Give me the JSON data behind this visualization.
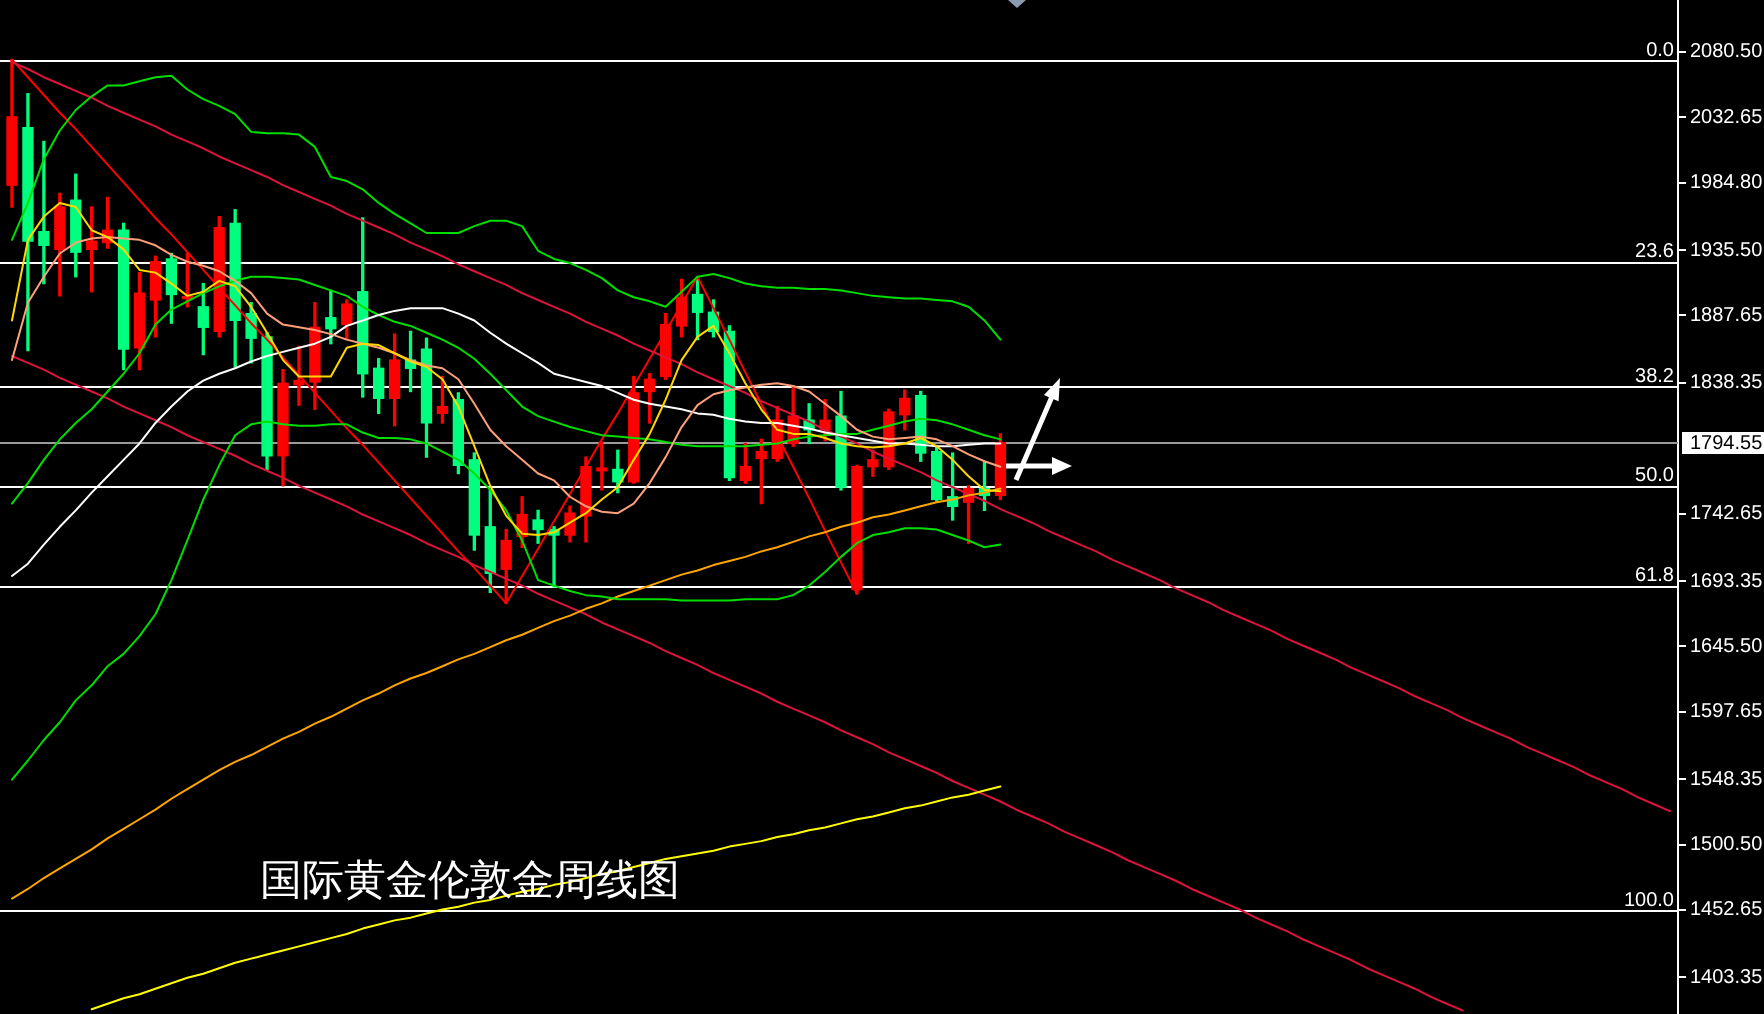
{
  "chart_data": {
    "type": "candlestick",
    "title": "国际黄金伦敦金周线图",
    "categories": [
      null,
      null,
      null,
      null,
      null,
      null,
      null,
      null,
      null,
      null,
      null,
      null,
      null,
      null,
      null,
      null,
      null,
      null,
      null,
      null,
      null,
      null,
      null,
      null,
      null,
      null,
      null,
      null,
      null,
      null,
      null,
      null,
      null,
      null,
      null,
      null,
      null,
      null,
      null,
      null,
      null,
      null,
      null,
      null,
      null,
      null,
      null,
      null,
      null,
      null,
      null,
      null,
      null,
      null,
      null,
      null,
      null,
      null,
      null,
      null,
      null,
      null,
      null,
      null,
      null,
      null,
      null,
      null,
      null,
      null,
      null,
      null,
      null,
      null,
      null,
      null,
      null,
      null,
      null,
      null,
      null,
      null,
      null,
      null,
      null,
      null,
      null,
      null,
      null,
      null,
      null,
      null,
      null,
      null,
      null,
      null,
      null,
      null,
      null,
      null,
      null,
      null,
      null,
      null,
      null
    ],
    "ohlc": [
      [
        1983,
        2075,
        1967,
        2033
      ],
      [
        2025,
        2050,
        1862,
        1942
      ],
      [
        1949,
        2015,
        1911,
        1939
      ],
      [
        1936,
        1977,
        1902,
        1967
      ],
      [
        1972,
        1991,
        1916,
        1934
      ],
      [
        1936,
        1967,
        1905,
        1942
      ],
      [
        1941,
        1974,
        1937,
        1950
      ],
      [
        1950,
        1955,
        1848,
        1863
      ],
      [
        1864,
        1919,
        1848,
        1904
      ],
      [
        1899,
        1931,
        1872,
        1927
      ],
      [
        1929,
        1933,
        1882,
        1903
      ],
      [
        1900,
        1933,
        1894,
        1901
      ],
      [
        1894,
        1911,
        1859,
        1879
      ],
      [
        1876,
        1960,
        1872,
        1952
      ],
      [
        1955,
        1965,
        1850,
        1884
      ],
      [
        1889,
        1897,
        1853,
        1871
      ],
      [
        1872,
        1875,
        1775,
        1785
      ],
      [
        1785,
        1848,
        1763,
        1838
      ],
      [
        1837,
        1865,
        1822,
        1840
      ],
      [
        1839,
        1897,
        1819,
        1879
      ],
      [
        1886,
        1906,
        1867,
        1878
      ],
      [
        1881,
        1899,
        1870,
        1896
      ],
      [
        1905,
        1959,
        1828,
        1845
      ],
      [
        1849,
        1856,
        1816,
        1827
      ],
      [
        1827,
        1874,
        1807,
        1855
      ],
      [
        1855,
        1876,
        1832,
        1849
      ],
      [
        1863,
        1871,
        1784,
        1809
      ],
      [
        1816,
        1843,
        1809,
        1821
      ],
      [
        1826,
        1831,
        1772,
        1778
      ],
      [
        1782,
        1787,
        1716,
        1727
      ],
      [
        1733,
        1760,
        1685,
        1699
      ],
      [
        1702,
        1731,
        1677,
        1723
      ],
      [
        1726,
        1755,
        1718,
        1742
      ],
      [
        1738,
        1745,
        1721,
        1731
      ],
      [
        1731,
        1733,
        1689,
        1727
      ],
      [
        1727,
        1748,
        1722,
        1743
      ],
      [
        1741,
        1784,
        1722,
        1777
      ],
      [
        1774,
        1795,
        1760,
        1776
      ],
      [
        1775,
        1789,
        1758,
        1766
      ],
      [
        1766,
        1843,
        1765,
        1831
      ],
      [
        1832,
        1845,
        1809,
        1841
      ],
      [
        1843,
        1889,
        1841,
        1881
      ],
      [
        1880,
        1914,
        1872,
        1901
      ],
      [
        1903,
        1916,
        1870,
        1890
      ],
      [
        1890,
        1899,
        1872,
        1876
      ],
      [
        1876,
        1880,
        1767,
        1769
      ],
      [
        1767,
        1794,
        1765,
        1777
      ],
      [
        1783,
        1797,
        1750,
        1788
      ],
      [
        1783,
        1821,
        1781,
        1811
      ],
      [
        1794,
        1835,
        1792,
        1814
      ],
      [
        1811,
        1823,
        1794,
        1804
      ],
      [
        1804,
        1826,
        1796,
        1811
      ],
      [
        1814,
        1832,
        1760,
        1762
      ],
      [
        1687,
        1778,
        1684,
        1777
      ],
      [
        1777,
        1789,
        1770,
        1782
      ],
      [
        1777,
        1819,
        1775,
        1817
      ],
      [
        1815,
        1833,
        1804,
        1827
      ],
      [
        1829,
        1832,
        1781,
        1787
      ],
      [
        1788,
        1792,
        1752,
        1753
      ],
      [
        1755,
        1787,
        1738,
        1748
      ],
      [
        1751,
        1763,
        1721,
        1761
      ],
      [
        1761,
        1780,
        1745,
        1756
      ],
      [
        1756,
        1801,
        1753,
        1794.55
      ],
      null,
      null,
      null,
      null,
      null,
      null,
      null,
      null,
      null,
      null,
      null,
      null,
      null,
      null,
      null,
      null,
      null,
      null,
      null,
      null,
      null,
      null,
      null,
      null,
      null,
      null,
      null,
      null,
      null,
      null,
      null,
      null,
      null,
      null,
      null,
      null,
      null,
      null,
      null,
      null,
      null,
      null
    ],
    "colors": [
      "#ff0000",
      "#00ff7f",
      "#00ff7f",
      "#ff0000",
      "#00ff7f",
      "#ff0000",
      "#ff0000",
      "#00ff7f",
      "#ff0000",
      "#ff0000",
      "#00ff7f",
      "#ff0000",
      "#00ff7f",
      "#ff0000",
      "#00ff7f",
      "#00ff7f",
      "#00ff7f",
      "#ff0000",
      "#ff0000",
      "#ff0000",
      "#00ff7f",
      "#ff0000",
      "#00ff7f",
      "#00ff7f",
      "#ff0000",
      "#00ff7f",
      "#00ff7f",
      "#ff0000",
      "#00ff7f",
      "#00ff7f",
      "#00ff7f",
      "#ff0000",
      "#ff0000",
      "#00ff7f",
      "#00ff7f",
      "#ff0000",
      "#ff0000",
      "#ff0000",
      "#00ff7f",
      "#ff0000",
      "#ff0000",
      "#ff0000",
      "#ff0000",
      "#00ff7f",
      "#00ff7f",
      "#00ff7f",
      "#ff0000",
      "#ff0000",
      "#ff0000",
      "#ff0000",
      "#00ff7f",
      "#ff0000",
      "#00ff7f",
      "#ff0000",
      "#ff0000",
      "#ff0000",
      "#ff0000",
      "#00ff7f",
      "#00ff7f",
      "#00ff7f",
      "#ff0000",
      "#00ff7f",
      "#ff0000",
      null,
      null,
      null,
      null,
      null,
      null,
      null,
      null,
      null,
      null,
      null,
      null,
      null,
      null,
      null,
      null,
      null,
      null,
      null,
      null,
      null,
      null,
      null,
      null,
      null,
      null,
      null,
      null,
      null,
      null,
      null,
      null,
      null,
      null,
      null,
      null,
      null,
      null,
      null,
      null,
      null,
      null
    ],
    "series": [
      {
        "type": "line",
        "color": "#ffd700",
        "values": [
          1884,
          1943,
          1960,
          1970,
          1967,
          1950,
          1945,
          1936,
          1921,
          1919,
          1911,
          1902,
          1905,
          1913,
          1909,
          1894,
          1875,
          1855,
          1843,
          1843,
          1843,
          1864,
          1867,
          1866,
          1860,
          1854,
          1850,
          1841,
          1821,
          1792,
          1763,
          1741,
          1728,
          1727,
          1729,
          1736,
          1743,
          1753,
          1762,
          1782,
          1801,
          1826,
          1855,
          1872,
          1880,
          1860,
          1838,
          1819,
          1804,
          1801,
          1801,
          1798,
          1794,
          1792,
          1791,
          1792,
          1794,
          1798,
          1792,
          1782,
          1770,
          1760,
          1759,
          null,
          null,
          null,
          null,
          null,
          null,
          null,
          null,
          null,
          null,
          null,
          null,
          null,
          null,
          null,
          null,
          null,
          null,
          null,
          null,
          null,
          null,
          null,
          null,
          null,
          null,
          null,
          null,
          null,
          null,
          null,
          null,
          null,
          null,
          null,
          null,
          null,
          null,
          null,
          null,
          null,
          null
        ]
      },
      {
        "type": "line",
        "color": "#ffa07a",
        "values": [
          1855,
          1897,
          1916,
          1933,
          1941,
          1944,
          1945,
          1944,
          1943,
          1939,
          1932,
          1927,
          1924,
          1920,
          1913,
          1904,
          1889,
          1881,
          1879,
          1877,
          1874,
          1870,
          1867,
          1864,
          1860,
          1855,
          1851,
          1849,
          1841,
          1823,
          1804,
          1792,
          1782,
          1772,
          1767,
          1755,
          1748,
          1744,
          1743,
          1750,
          1765,
          1784,
          1806,
          1822,
          1830,
          1833,
          1835,
          1837,
          1838,
          1836,
          1832,
          1823,
          1814,
          1804,
          1799,
          1797,
          1798,
          1799,
          1797,
          1792,
          1786,
          1781,
          1777,
          null,
          null,
          null,
          null,
          null,
          null,
          null,
          null,
          null,
          null,
          null,
          null,
          null,
          null,
          null,
          null,
          null,
          null,
          null,
          null,
          null,
          null,
          null,
          null,
          null,
          null,
          null,
          null,
          null,
          null,
          null,
          null,
          null,
          null,
          null,
          null,
          null,
          null,
          null,
          null,
          null,
          null
        ]
      },
      {
        "type": "line",
        "color": "#ffffff",
        "values": [
          1697,
          1706,
          1720,
          1733,
          1745,
          1758,
          1770,
          1782,
          1794,
          1809,
          1821,
          1832,
          1840,
          1845,
          1849,
          1854,
          1858,
          1861,
          1864,
          1867,
          1872,
          1880,
          1884,
          1888,
          1891,
          1893,
          1893,
          1893,
          1889,
          1884,
          1875,
          1867,
          1860,
          1853,
          1845,
          1842,
          1839,
          1836,
          1831,
          1826,
          1823,
          1821,
          1819,
          1816,
          1815,
          1812,
          1810,
          1809,
          1809,
          1807,
          1805,
          1802,
          1800,
          1798,
          1796,
          1794,
          1794,
          1793,
          1792,
          1792,
          1793,
          1794,
          1794,
          null,
          null,
          null,
          null,
          null,
          null,
          null,
          null,
          null,
          null,
          null,
          null,
          null,
          null,
          null,
          null,
          null,
          null,
          null,
          null,
          null,
          null,
          null,
          null,
          null,
          null,
          null,
          null,
          null,
          null,
          null,
          null,
          null,
          null,
          null,
          null,
          null,
          null,
          null,
          null,
          null,
          null
        ]
      },
      {
        "type": "line",
        "color": "#00dd00",
        "values": [
          1943,
          1970,
          2002,
          2023,
          2038,
          2048,
          2056,
          2056,
          2059,
          2062,
          2063,
          2053,
          2046,
          2041,
          2035,
          2022,
          2021,
          2021,
          2020,
          2011,
          1989,
          1986,
          1980,
          1970,
          1962,
          1955,
          1948,
          1948,
          1948,
          1953,
          1957,
          1957,
          1953,
          1935,
          1929,
          1926,
          1921,
          1915,
          1906,
          1901,
          1898,
          1894,
          1905,
          1916,
          1918,
          1915,
          1911,
          1909,
          1908,
          1908,
          1907,
          1907,
          1906,
          1904,
          1902,
          1901,
          1900,
          1900,
          1899,
          1898,
          1894,
          1884,
          1870,
          null,
          null,
          null,
          null,
          null,
          null,
          null,
          null,
          null,
          null,
          null,
          null,
          null,
          null,
          null,
          null,
          null,
          null,
          null,
          null,
          null,
          null,
          null,
          null,
          null,
          null,
          null,
          null,
          null,
          null,
          null,
          null,
          null,
          null,
          null,
          null,
          null,
          null,
          null,
          null,
          null,
          null
        ]
      },
      {
        "type": "line",
        "color": "#00dd00",
        "values": [
          1750,
          1765,
          1782,
          1797,
          1809,
          1819,
          1832,
          1845,
          1860,
          1881,
          1892,
          1898,
          1904,
          1909,
          1913,
          1916,
          1916,
          1915,
          1914,
          1910,
          1906,
          1902,
          1894,
          1888,
          1883,
          1880,
          1875,
          1870,
          1864,
          1856,
          1845,
          1833,
          1821,
          1814,
          1810,
          1806,
          1803,
          1800,
          1799,
          1798,
          1797,
          1795,
          1793,
          1792,
          1792,
          1792,
          1792,
          1793,
          1794,
          1797,
          1799,
          1800,
          1801,
          1801,
          1804,
          1807,
          1810,
          1812,
          1811,
          1808,
          1804,
          1800,
          1797,
          null,
          null,
          null,
          null,
          null,
          null,
          null,
          null,
          null,
          null,
          null,
          null,
          null,
          null,
          null,
          null,
          null,
          null,
          null,
          null,
          null,
          null,
          null,
          null,
          null,
          null,
          null,
          null,
          null,
          null,
          null,
          null,
          null,
          null,
          null,
          null,
          null,
          null,
          null,
          null,
          null,
          null
        ]
      },
      {
        "type": "line",
        "color": "#00dd00",
        "values": [
          1548,
          1562,
          1577,
          1590,
          1606,
          1617,
          1631,
          1640,
          1653,
          1669,
          1694,
          1723,
          1753,
          1778,
          1800,
          1808,
          1810,
          1808,
          1807,
          1807,
          1808,
          1808,
          1802,
          1798,
          1798,
          1797,
          1794,
          1788,
          1782,
          1772,
          1760,
          1745,
          1723,
          1694,
          1690,
          1686,
          1683,
          1682,
          1680,
          1680,
          1680,
          1680,
          1679,
          1679,
          1679,
          1679,
          1680,
          1680,
          1680,
          1683,
          1690,
          1700,
          1711,
          1721,
          1727,
          1729,
          1732,
          1732,
          1731,
          1727,
          1723,
          1718,
          1720,
          null,
          null,
          null,
          null,
          null,
          null,
          null,
          null,
          null,
          null,
          null,
          null,
          null,
          null,
          null,
          null,
          null,
          null,
          null,
          null,
          null,
          null,
          null,
          null,
          null,
          null,
          null,
          null,
          null,
          null,
          null,
          null,
          null,
          null,
          null,
          null,
          null,
          null,
          null,
          null,
          null,
          null
        ]
      },
      {
        "type": "line",
        "color": "#ffa500",
        "values": [
          1461,
          1468,
          1476,
          1483,
          1490,
          1497,
          1505,
          1512,
          1519,
          1526,
          1534,
          1541,
          1548,
          1555,
          1561,
          1566,
          1572,
          1578,
          1583,
          1589,
          1594,
          1600,
          1606,
          1611,
          1617,
          1622,
          1626,
          1631,
          1636,
          1640,
          1645,
          1650,
          1654,
          1659,
          1664,
          1668,
          1673,
          1677,
          1682,
          1686,
          1690,
          1694,
          1698,
          1701,
          1705,
          1708,
          1711,
          1715,
          1718,
          1722,
          1726,
          1729,
          1733,
          1736,
          1740,
          1742,
          1745,
          1748,
          1751,
          1753,
          1756,
          1758,
          1761,
          null,
          null,
          null,
          null,
          null,
          null,
          null,
          null,
          null,
          null,
          null,
          null,
          null,
          null,
          null,
          null,
          null,
          null,
          null,
          null,
          null,
          null,
          null,
          null,
          null,
          null,
          null,
          null,
          null,
          null,
          null,
          null,
          null,
          null,
          null,
          null,
          null,
          null,
          null,
          null,
          null,
          null
        ]
      },
      {
        "type": "line",
        "color": "#ffff00",
        "values": [
          null,
          null,
          null,
          null,
          null,
          1380,
          1384,
          1388,
          1391,
          1395,
          1399,
          1403,
          1406,
          1410,
          1414,
          1417,
          1420,
          1423,
          1426,
          1429,
          1432,
          1435,
          1439,
          1442,
          1445,
          1447,
          1450,
          1453,
          1455,
          1458,
          1460,
          1463,
          1466,
          1468,
          1471,
          1473,
          1476,
          1479,
          1481,
          1484,
          1487,
          1490,
          1492,
          1494,
          1496,
          1499,
          1501,
          1503,
          1506,
          1508,
          1511,
          1513,
          1516,
          1519,
          1521,
          1524,
          1527,
          1529,
          1532,
          1535,
          1537,
          1540,
          1543,
          null,
          null,
          null,
          null,
          null,
          null,
          null,
          null,
          null,
          null,
          null,
          null,
          null,
          null,
          null,
          null,
          null,
          null,
          null,
          null,
          null,
          null,
          null,
          null,
          null,
          null,
          null,
          null,
          null,
          null,
          null,
          null,
          null,
          null,
          null,
          null,
          null,
          null,
          null,
          null,
          null,
          null
        ]
      },
      {
        "type": "line",
        "color": "#dc143c",
        "values": [
          2073,
          2068,
          2062,
          2057,
          2052,
          2047,
          2041,
          2036,
          2031,
          2026,
          2020,
          2015,
          2010,
          2004,
          1999,
          1994,
          1989,
          1983,
          1978,
          1973,
          1968,
          1962,
          1957,
          1952,
          1947,
          1941,
          1936,
          1931,
          1925,
          1920,
          1915,
          1910,
          1904,
          1899,
          1894,
          1889,
          1883,
          1878,
          1873,
          1867,
          1862,
          1857,
          1852,
          1846,
          1841,
          1836,
          1831,
          1825,
          1820,
          1815,
          1810,
          1804,
          1799,
          1794,
          1788,
          1783,
          1778,
          1773,
          1767,
          1762,
          1757,
          1752,
          1746,
          1741,
          1736,
          1730,
          1725,
          1720,
          1715,
          1709,
          1704,
          1699,
          1694,
          1688,
          1683,
          1678,
          1672,
          1667,
          1662,
          1657,
          1651,
          1646,
          1641,
          1636,
          1630,
          1625,
          1620,
          1615,
          1609,
          1604,
          1599,
          1593,
          1588,
          1583,
          1578,
          1572,
          1567,
          1562,
          1557,
          1551,
          1546,
          1541,
          1535,
          1530,
          1525
        ]
      },
      {
        "type": "line",
        "color": "#dc143c",
        "values": [
          1858,
          1853,
          1848,
          1842,
          1837,
          1832,
          1827,
          1821,
          1816,
          1811,
          1806,
          1800,
          1795,
          1790,
          1785,
          1779,
          1774,
          1769,
          1763,
          1758,
          1753,
          1748,
          1742,
          1737,
          1732,
          1727,
          1721,
          1716,
          1711,
          1705,
          1700,
          1695,
          1690,
          1684,
          1679,
          1674,
          1669,
          1663,
          1658,
          1653,
          1648,
          1642,
          1637,
          1632,
          1626,
          1621,
          1616,
          1611,
          1605,
          1600,
          1595,
          1590,
          1584,
          1579,
          1574,
          1568,
          1563,
          1558,
          1553,
          1547,
          1542,
          1537,
          1532,
          1526,
          1521,
          1516,
          1510,
          1505,
          1500,
          1495,
          1489,
          1484,
          1479,
          1474,
          1468,
          1463,
          1458,
          1453,
          1447,
          1442,
          1437,
          1431,
          1426,
          1421,
          1416,
          1410,
          1405,
          1400,
          1395,
          1389,
          1384,
          1379,
          null,
          null,
          null,
          null,
          null,
          null,
          null,
          null,
          null,
          null,
          null,
          null,
          null
        ]
      },
      {
        "type": "line",
        "color": "#ff0000",
        "values": [
          2075,
          2062,
          2049,
          2036,
          2024,
          2011,
          1998,
          1985,
          1972,
          1959,
          1947,
          1934,
          1921,
          1908,
          1895,
          1882,
          1870,
          1857,
          1844,
          1831,
          1818,
          1805,
          1793,
          1780,
          1767,
          1754,
          1741,
          1728,
          1715,
          1703,
          1690,
          1677,
          1697,
          1717,
          1737,
          1757,
          1777,
          1797,
          1816,
          1836,
          1856,
          1876,
          1896,
          1916,
          1893,
          1870,
          1846,
          1823,
          1800,
          1777,
          1754,
          1730,
          1707,
          1684,
          null,
          null,
          null,
          null,
          null,
          null,
          null,
          null,
          null,
          null,
          null,
          null,
          null,
          null,
          null,
          null,
          null,
          null,
          null,
          null,
          null,
          null,
          null,
          null,
          null,
          null,
          null,
          null,
          null,
          null,
          null,
          null,
          null,
          null,
          null,
          null,
          null,
          null,
          null,
          null,
          null,
          null,
          null,
          null,
          null,
          null,
          null,
          null,
          null,
          null,
          null
        ]
      }
    ],
    "ylim": [
      1376.5,
      2118.5
    ],
    "yticks": [
      {
        "value": 2080.5,
        "label": "2080.50"
      },
      2032.65,
      {
        "value": 1984.8,
        "label": "1984.80"
      },
      {
        "value": 1935.5,
        "label": "1935.50"
      },
      1887.65,
      1838.35,
      1742.65,
      1693.35,
      {
        "value": 1645.5,
        "label": "1645.50"
      },
      1597.65,
      1548.35,
      {
        "value": 1500.5,
        "label": "1500.50"
      },
      1452.65,
      1403.35
    ],
    "ref_lines": [
      {
        "axis": "y",
        "value": 2074,
        "color": "#ffffff"
      },
      {
        "axis": "y",
        "value": 1927,
        "color": "#ffffff"
      },
      {
        "axis": "y",
        "value": 1836,
        "color": "#ffffff"
      },
      {
        "axis": "y",
        "value": 1763,
        "color": "#ffffff"
      },
      {
        "axis": "y",
        "value": 1690,
        "color": "#ffffff"
      },
      {
        "axis": "y",
        "value": 1452,
        "color": "#ffffff"
      },
      {
        "axis": "y",
        "value": 1794.55,
        "label": "1794.55",
        "color": "#9a9a9a"
      }
    ],
    "annotations": [
      {
        "text": "0.0",
        "y": 2074
      },
      {
        "text": "23.6",
        "y": 1927
      },
      {
        "text": "38.2",
        "y": 1836
      },
      {
        "text": "50.0",
        "y": 1763
      },
      {
        "text": "61.8",
        "y": 1690
      },
      {
        "text": "100.0",
        "y": 1452
      }
    ],
    "tick_labels": "y"
  }
}
